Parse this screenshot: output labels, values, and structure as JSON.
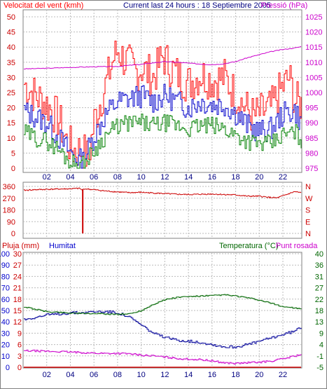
{
  "header": {
    "left": "Velocitat del vent (kmh)",
    "center": "Current last 24 hours : 18 Septiembre 2005",
    "right": "Pressió (hPa)"
  },
  "bottom_header": {
    "rain": "Pluja (mm)",
    "humidity": "Humitat",
    "temperature": "Temperatura (°C)",
    "dewpoint": "Punt rosada"
  },
  "colors": {
    "frame": "#808080",
    "grid": "#bbbbbb",
    "wind": "#ff0000",
    "wind_avg": "#0000cc",
    "wind_min": "#008000",
    "pressure": "#cc00cc",
    "direction": "#cc0000",
    "humidity": "#000099",
    "temperature": "#006600",
    "dewpoint": "#cc00cc",
    "rain": "#cc0000",
    "blue_text": "#0000cc",
    "green_text": "#006600",
    "magenta_text": "#cc00cc",
    "red_text": "#cc0000"
  },
  "chart_data": [
    {
      "type": "line",
      "title": "Current last 24 hours : 18 Septiembre 2005",
      "x_labels": [
        "02",
        "04",
        "06",
        "08",
        "10",
        "12",
        "14",
        "16",
        "18",
        "20",
        "22"
      ],
      "hour_range": [
        0,
        23.6
      ],
      "ylabel_left": "Velocitat del vent (kmh)",
      "ylabel_right": "Pressió (hPa)",
      "left_ticks": [
        0,
        5,
        10,
        15,
        20,
        25,
        30,
        35,
        40,
        45,
        50
      ],
      "right_ticks": [
        975,
        980,
        985,
        990,
        995,
        1000,
        1005,
        1010,
        1015,
        1020,
        1025
      ],
      "ylim_left": [
        0,
        50
      ],
      "ylim_right": [
        975,
        1025
      ],
      "series": [
        {
          "name": "gust",
          "axis": "left",
          "x": [
            0,
            1,
            2,
            3,
            3.6,
            4.2,
            5,
            5.5,
            6,
            7,
            7.6,
            8,
            8.5,
            9,
            9.5,
            10,
            11,
            11.8,
            12.5,
            13,
            14,
            15,
            16,
            17,
            18,
            19,
            19.5,
            20,
            21,
            21.5,
            22,
            22.5,
            23,
            23.6
          ],
          "y": [
            28,
            24,
            21,
            16,
            9,
            6,
            6,
            3,
            16,
            28,
            36,
            39,
            36,
            34,
            32,
            33,
            30,
            37,
            33,
            31,
            28,
            31,
            29,
            30,
            24,
            19,
            17,
            18,
            20,
            24,
            27,
            30,
            22,
            21
          ]
        },
        {
          "name": "average",
          "axis": "left",
          "x": [
            0,
            1,
            2,
            3,
            4,
            5,
            6,
            7,
            8,
            9,
            10,
            11,
            12,
            13,
            14,
            15,
            16,
            17,
            18,
            19,
            20,
            21,
            22,
            23,
            23.6
          ],
          "y": [
            19,
            17,
            15,
            10,
            5,
            2,
            11,
            18,
            22,
            23,
            24,
            22,
            24,
            22,
            20,
            22,
            21,
            21,
            18,
            14,
            12,
            13,
            18,
            19,
            14
          ]
        },
        {
          "name": "minimum",
          "axis": "left",
          "x": [
            0,
            1,
            2,
            3,
            4,
            5,
            6,
            7,
            8,
            9,
            10,
            11,
            12,
            13,
            14,
            15,
            16,
            17,
            18,
            19,
            20,
            21,
            22,
            23,
            23.6
          ],
          "y": [
            12,
            10,
            9,
            6,
            2,
            1,
            6,
            11,
            14,
            15,
            15,
            14,
            15,
            14,
            13,
            14,
            14,
            13,
            11,
            9,
            8,
            8,
            11,
            12,
            9
          ]
        },
        {
          "name": "pressure",
          "axis": "right",
          "x": [
            0,
            2,
            4,
            6,
            8,
            9,
            10,
            11,
            12,
            13,
            14,
            15,
            16,
            17,
            18,
            19,
            20,
            21,
            22,
            23,
            23.6
          ],
          "y": [
            1007.8,
            1008,
            1008.3,
            1008.5,
            1008.6,
            1009,
            1009.3,
            1009.8,
            1010.2,
            1010,
            1009.7,
            1009.4,
            1009.2,
            1009.5,
            1010.2,
            1011.5,
            1012.5,
            1013.5,
            1014.2,
            1014.7,
            1015.2
          ]
        }
      ]
    },
    {
      "type": "line",
      "left_ticks": [
        0,
        90,
        180,
        270,
        360
      ],
      "right_labels": [
        "N",
        "W",
        "S",
        "E",
        "N"
      ],
      "ylim": [
        0,
        360
      ],
      "series": [
        {
          "name": "direction",
          "x": [
            0,
            1,
            2,
            3,
            4,
            4.8,
            5,
            5.2,
            6,
            7,
            8,
            9,
            10,
            11,
            12,
            13,
            14,
            15,
            16,
            17,
            18,
            19,
            20,
            21,
            21.5,
            22,
            23,
            23.6
          ],
          "y": [
            330,
            335,
            338,
            340,
            342,
            345,
            330,
            342,
            335,
            325,
            318,
            312,
            315,
            310,
            305,
            300,
            298,
            300,
            302,
            298,
            295,
            285,
            285,
            275,
            272,
            288,
            320,
            310
          ]
        },
        {
          "name": "spike",
          "x": [
            5.05
          ],
          "y": [
            0
          ]
        }
      ]
    },
    {
      "type": "line",
      "xlabel": "",
      "left_ticks_rain": [
        0,
        3,
        6,
        9,
        12,
        15,
        18,
        21,
        24,
        27,
        30
      ],
      "left_ticks_humidity": [
        0,
        10,
        20,
        30,
        40,
        50,
        60,
        70,
        80,
        90,
        100
      ],
      "right_ticks": [
        -5,
        -1,
        4,
        9,
        13,
        18,
        22,
        27,
        31,
        36,
        40
      ],
      "ylim_rain": [
        0,
        30
      ],
      "ylim_humidity": [
        0,
        100
      ],
      "ylim_temp": [
        -5,
        40
      ],
      "series": [
        {
          "name": "Pluja (mm)",
          "axis": "rain",
          "x": [
            0,
            23.6
          ],
          "y": [
            0,
            0
          ]
        },
        {
          "name": "Humitat",
          "axis": "humidity",
          "x": [
            0,
            1,
            2,
            3,
            4,
            5,
            6,
            7,
            8,
            9,
            10,
            11,
            12,
            13,
            14,
            15,
            16,
            17,
            18,
            19,
            20,
            21,
            22,
            23,
            23.6
          ],
          "y": [
            42,
            44,
            46,
            47,
            48,
            48,
            49,
            49,
            48,
            44,
            37,
            30,
            26,
            24,
            23,
            22,
            20,
            18,
            18,
            20,
            23,
            26,
            29,
            32,
            36
          ]
        },
        {
          "name": "Temperatura",
          "axis": "temp",
          "x": [
            0,
            1,
            2,
            3,
            4,
            5,
            6,
            7,
            8,
            9,
            10,
            11,
            12,
            13,
            14,
            15,
            16,
            17,
            18,
            19,
            20,
            21,
            22,
            23,
            23.6
          ],
          "y": [
            19,
            18,
            17,
            16.8,
            16.5,
            16.3,
            16.3,
            16.1,
            16,
            16.2,
            17.5,
            20,
            21.8,
            22.7,
            23,
            23.2,
            23.4,
            23.7,
            23.2,
            22.5,
            21.5,
            20.3,
            19,
            18.5,
            17.8
          ]
        },
        {
          "name": "Punt rosada",
          "axis": "temp",
          "x": [
            0,
            1,
            2,
            3,
            4,
            5,
            6,
            7,
            8,
            9,
            10,
            11,
            12,
            13,
            14,
            15,
            16,
            17,
            18,
            19,
            20,
            21,
            22,
            23,
            23.6
          ],
          "y": [
            1.5,
            1.5,
            1.3,
            1.2,
            1,
            0.8,
            0.6,
            0.5,
            0.5,
            0.3,
            -0.2,
            -0.5,
            -1,
            -1.5,
            -1.8,
            -2,
            -2.5,
            -3.2,
            -3.5,
            -3.2,
            -3,
            -2.5,
            -1.6,
            -0.5,
            0.2
          ]
        }
      ]
    }
  ]
}
